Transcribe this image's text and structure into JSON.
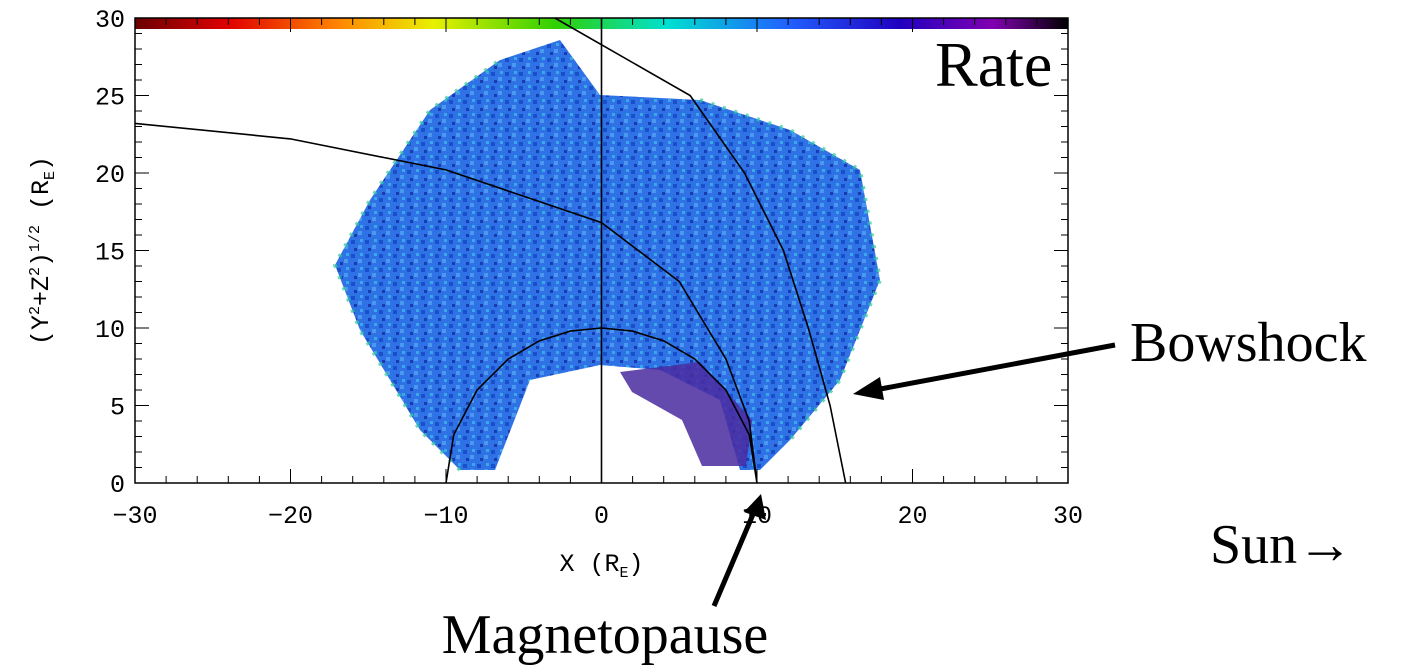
{
  "chart_data": {
    "type": "line",
    "annotations": {
      "rate": "Rate",
      "bowshock": "Bowshock",
      "magnetopause": "Magnetopause",
      "sun": "Sun→"
    },
    "xlabel": [
      "X (R",
      "E",
      ")"
    ],
    "ylabel": [
      "(Y",
      "2",
      "+Z",
      "2",
      ")",
      "1/2",
      " (R",
      "E",
      ")"
    ],
    "xlim": [
      -30,
      30
    ],
    "ylim": [
      0,
      30
    ],
    "xticks": [
      {
        "value": -30,
        "label": "−30"
      },
      {
        "value": -20,
        "label": "−20"
      },
      {
        "value": -10,
        "label": "−10"
      },
      0,
      10,
      20,
      30
    ],
    "yticks": [
      0,
      5,
      10,
      15,
      20,
      25,
      30
    ],
    "series": [
      {
        "color": "#000000",
        "x": [
          -10,
          -9.5,
          -8,
          -6,
          -4,
          -2,
          0,
          2,
          4,
          6,
          8,
          9.5,
          10
        ],
        "values": [
          0,
          3.12,
          6,
          8,
          9.17,
          9.8,
          10,
          9.8,
          9.17,
          8,
          6,
          3.12,
          0
        ]
      },
      {
        "color": "#000000",
        "x": [
          15.7,
          14.7,
          13.3,
          11.7,
          9.2,
          5.7,
          -3
        ],
        "values": [
          0,
          5,
          10,
          15,
          20,
          25,
          30
        ]
      },
      {
        "color": "#000000",
        "x": [
          -30,
          -20,
          -10,
          0,
          5,
          8,
          9.5,
          10
        ],
        "values": [
          23.2,
          22.2,
          20.2,
          16.8,
          13,
          8,
          4,
          0
        ]
      },
      {
        "color": "#000000",
        "x": [
          0,
          0
        ],
        "values": [
          0,
          30
        ]
      }
    ]
  }
}
